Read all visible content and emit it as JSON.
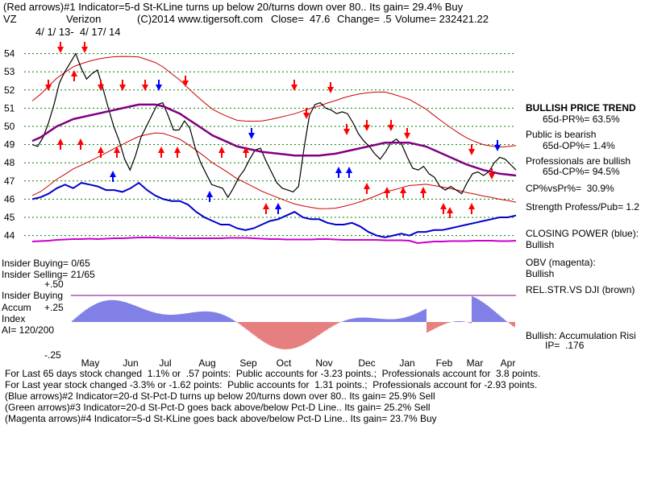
{
  "header": {
    "line1": "(Red arrows)#1 Indicator=5-d St-KLine turns up below 20/turns down over 80.. Its gain= 29.4% Buy",
    "symbol": "VZ",
    "company": "Verizon",
    "copyright": "(C)2014 www.tigersoft.com",
    "close": "Close=  47.6",
    "change": "Change= .5",
    "volume": "Volume= 232421.22",
    "date_range": "4/ 1/ 13-  4/ 17/ 14"
  },
  "left_labels": {
    "insider_buying": "Insider Buying= 0/65",
    "insider_selling": "Insider Selling= 21/65",
    "plus50": "+.50",
    "insider_buying2": "Insider Buying",
    "accum": "Accum",
    "plus25": "+.25",
    "index": "Index",
    "ai": "AI= 120/200",
    "minus25": "-.25"
  },
  "right_panel": {
    "trend_title": "BULLISH PRICE TREND",
    "pr": "65d-PR%= 63.5%",
    "public": "Public is bearish",
    "op": "65d-OP%= 1.4%",
    "prof": "Professionals are bullish",
    "cp": "65d-CP%= 94.5%",
    "cpvspr": "CP%vsPr%=  30.9%",
    "strength": "Strength Profess/Pub= 1.2",
    "closing_power": "CLOSING POWER (blue):",
    "cp_bull": "Bullish",
    "obv": "OBV (magenta):",
    "obv_bull": "Bullish",
    "relstr": "REL.STR.VS DJI (brown)",
    "accum_bull": "Bullish: Accumulation Risi",
    "ip": "IP=  .176"
  },
  "footer": {
    "line1": "For Last 65 days stock changed  1.1% or  .57 points:  Public accounts for -3.23 points.;  Professionals account for  3.8 points.",
    "line2": "For Last year stock changed -3.3% or -1.62 points:  Public accounts for  1.31 points.;  Professionals account for -2.93 points.",
    "line3": "(Blue arrows)#2 Indicator=20-d St-Pct-D turns up below 20/turns down over 80.. Its gain= 25.9% Sell",
    "line4": "(Green arrows)#3 Indicator=20-d St-Pct-D goes back above/below Pct-D Line.. Its gain= 25.2% Sell",
    "line5": "(Magenta arrows)#4 Indicator=5-d St-KLine goes back above/below Pct-D Line.. Its gain= 23.7% Buy"
  },
  "colors": {
    "price": "#000000",
    "bands": "#cc0000",
    "ma": "#800080",
    "closing_power": "#0000cc",
    "obv": "#cc00cc",
    "red_arrow": "#ff0000",
    "blue_arrow": "#0000ff",
    "grid": "#008000",
    "accum_pos": "#0000cc",
    "accum_neg": "#cc0000"
  },
  "chart_data": {
    "type": "line",
    "title": "VZ Verizon",
    "y_ticks": [
      "54",
      "53",
      "52",
      "51",
      "50",
      "49",
      "48",
      "47",
      "46",
      "45",
      "44"
    ],
    "ylim": [
      43.6,
      54.6
    ],
    "month_labels": [
      "May",
      "Jun",
      "Jul",
      "Aug",
      "Sep",
      "Oct",
      "Nov",
      "Dec",
      "Jan",
      "Feb",
      "Mar",
      "Apr"
    ],
    "price": [
      49.0,
      48.9,
      49.4,
      50.2,
      51.2,
      52.4,
      53.0,
      53.5,
      54.0,
      53.2,
      52.6,
      52.9,
      53.1,
      52.1,
      51.0,
      50.0,
      49.2,
      48.2,
      47.6,
      48.4,
      49.4,
      50.0,
      50.6,
      51.2,
      51.3,
      50.6,
      49.8,
      49.8,
      50.3,
      49.9,
      48.8,
      48.0,
      47.4,
      46.8,
      46.7,
      46.6,
      46.1,
      46.6,
      47.2,
      47.6,
      48.2,
      48.7,
      48.8,
      48.1,
      47.5,
      46.9,
      46.6,
      46.5,
      46.4,
      46.7,
      48.8,
      50.6,
      51.2,
      51.3,
      51.0,
      50.9,
      50.7,
      50.8,
      50.7,
      50.2,
      49.6,
      49.2,
      48.9,
      48.5,
      48.2,
      48.6,
      49.1,
      49.3,
      49.0,
      48.3,
      47.7,
      47.6,
      47.8,
      47.4,
      47.2,
      46.7,
      46.5,
      46.7,
      46.5,
      46.3,
      46.9,
      47.4,
      47.5,
      47.3,
      47.5,
      48.0,
      48.3,
      48.2,
      47.9,
      47.6
    ],
    "ma": [
      49.2,
      49.4,
      49.7,
      50.0,
      50.2,
      50.4,
      50.5,
      50.6,
      50.7,
      50.8,
      50.9,
      51.0,
      51.1,
      51.2,
      51.2,
      51.2,
      51.1,
      50.9,
      50.7,
      50.4,
      50.1,
      49.8,
      49.5,
      49.3,
      49.1,
      48.9,
      48.8,
      48.7,
      48.6,
      48.55,
      48.5,
      48.45,
      48.4,
      48.4,
      48.4,
      48.4,
      48.45,
      48.5,
      48.6,
      48.7,
      48.8,
      48.9,
      49.0,
      49.1,
      49.1,
      49.1,
      49.1,
      49.0,
      48.9,
      48.7,
      48.5,
      48.3,
      48.1,
      47.9,
      47.75,
      47.6,
      47.5,
      47.4,
      47.35,
      47.3
    ],
    "closing_power": [
      46.0,
      46.1,
      46.3,
      46.6,
      46.8,
      46.6,
      46.9,
      46.8,
      46.7,
      46.5,
      46.5,
      46.4,
      46.6,
      46.9,
      46.5,
      46.2,
      46.0,
      45.9,
      45.9,
      45.7,
      45.3,
      45.0,
      44.8,
      44.6,
      44.6,
      44.4,
      44.3,
      44.4,
      44.6,
      44.8,
      44.9,
      45.1,
      45.3,
      45.0,
      44.9,
      44.9,
      44.7,
      44.6,
      44.6,
      44.7,
      44.5,
      44.2,
      44.0,
      43.9,
      44.0,
      44.1,
      44.0,
      44.2,
      44.2,
      44.3,
      44.3,
      44.4,
      44.5,
      44.6,
      44.7,
      44.8,
      44.9,
      45.0,
      45.0,
      45.1
    ],
    "obv": [
      43.6,
      43.65,
      43.7,
      43.8,
      43.85,
      43.9,
      43.9,
      43.95,
      43.9,
      43.95,
      44.0,
      44.0,
      44.05,
      44.1,
      44.1,
      44.1,
      44.05,
      44.05,
      44.0,
      44.0,
      44.0,
      44.0,
      44.0,
      44.0,
      44.05,
      44.05,
      44.05,
      44.0,
      43.95,
      43.9,
      43.9,
      43.85,
      43.85,
      43.85,
      43.85,
      43.9,
      43.9,
      43.85,
      43.8,
      43.8,
      43.8,
      43.8,
      43.8,
      43.75,
      43.75,
      43.75,
      43.7,
      43.4,
      43.5,
      43.6,
      43.6,
      43.65,
      43.65,
      43.65,
      43.7,
      43.7,
      43.7,
      43.65,
      43.65,
      43.7
    ]
  }
}
